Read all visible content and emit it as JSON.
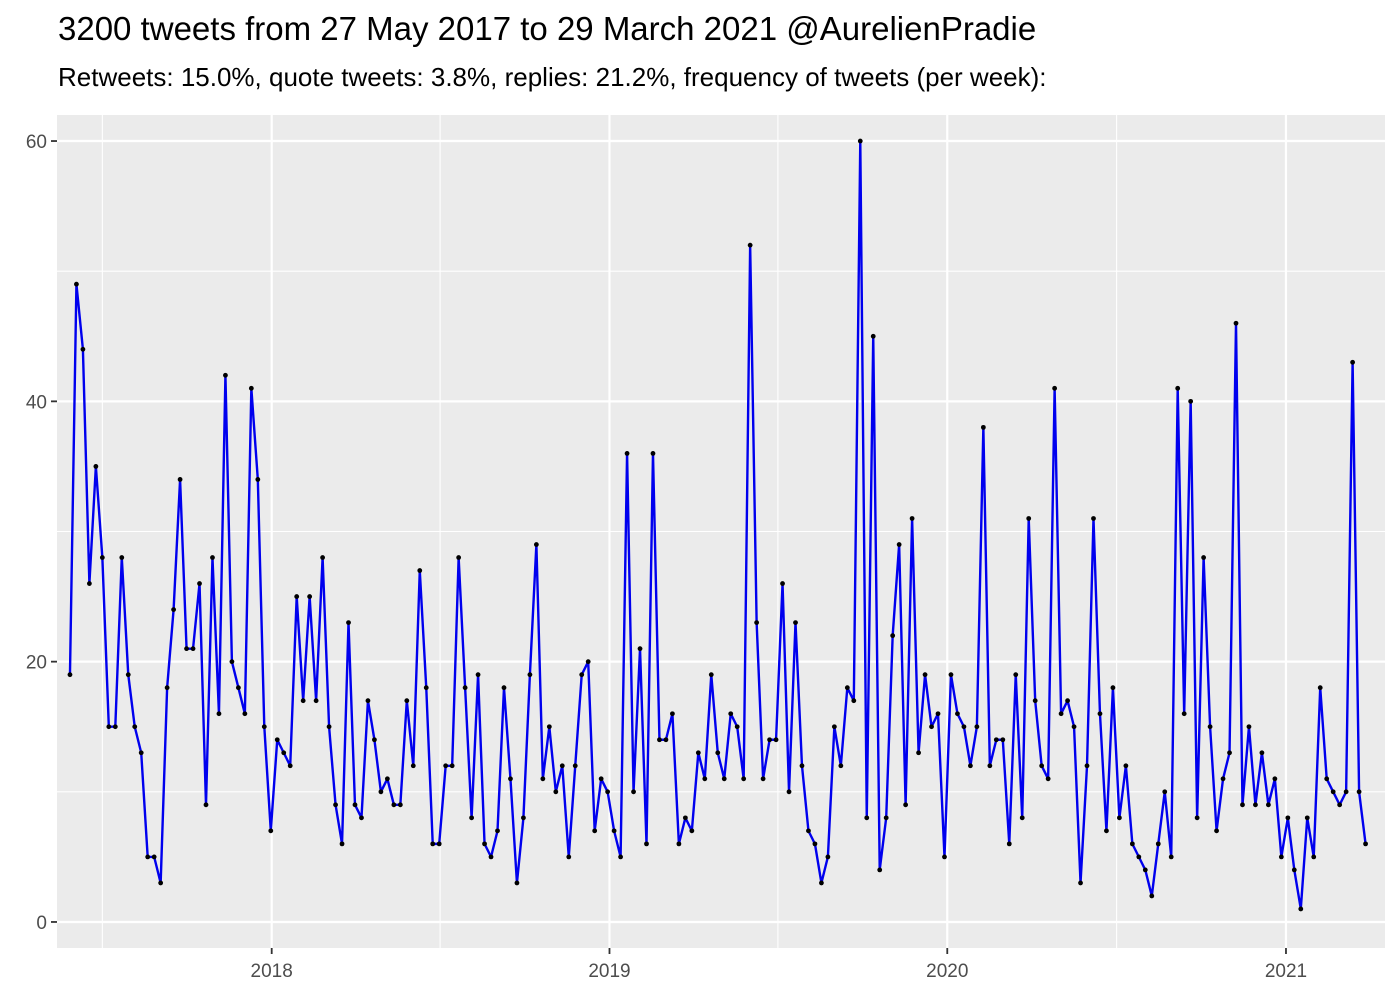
{
  "chart_data": {
    "type": "line",
    "title": "3200 tweets from 27 May 2017 to 29 March 2021 @AurelienPradie",
    "subtitle": "Retweets: 15.0%, quote tweets: 3.8%, replies: 21.2%, frequency of tweets (per week):",
    "xlabel": "",
    "ylabel": "",
    "x_start": "2017-05-28",
    "x_step_days": 7,
    "xlim": [
      "2017-05-14",
      "2021-04-18"
    ],
    "ylim": [
      -2,
      62
    ],
    "x_ticks": [
      {
        "label": "2018",
        "date": "2018-01-01"
      },
      {
        "label": "2019",
        "date": "2019-01-01"
      },
      {
        "label": "2020",
        "date": "2020-01-01"
      },
      {
        "label": "2021",
        "date": "2021-01-01"
      }
    ],
    "x_minor_dates": [
      "2017-07-02",
      "2018-07-02",
      "2019-07-02",
      "2020-07-02"
    ],
    "y_ticks": [
      "0",
      "20",
      "40",
      "60"
    ],
    "y_minor": [
      10,
      30,
      50
    ],
    "grid": true,
    "legend": "none",
    "colors": {
      "line": "#0000ee",
      "points": "#000000",
      "panel": "#ebebeb",
      "grid": "#ffffff"
    },
    "series": [
      {
        "values": [
          19,
          49,
          44,
          26,
          35,
          28,
          15,
          15,
          28,
          19,
          15,
          13,
          5,
          5,
          3,
          18,
          24,
          34,
          21,
          21,
          26,
          9,
          28,
          16,
          42,
          20,
          18,
          16,
          41,
          34,
          15,
          7,
          14,
          13,
          12,
          25,
          17,
          25,
          17,
          28,
          15,
          9,
          6,
          23,
          9,
          8,
          17,
          14,
          10,
          11,
          9,
          9,
          17,
          12,
          27,
          18,
          6,
          6,
          12,
          12,
          28,
          18,
          8,
          19,
          6,
          5,
          7,
          18,
          11,
          3,
          8,
          19,
          29,
          11,
          15,
          10,
          12,
          5,
          12,
          19,
          20,
          7,
          11,
          10,
          7,
          5,
          36,
          10,
          21,
          6,
          36,
          14,
          14,
          16,
          6,
          8,
          7,
          13,
          11,
          19,
          13,
          11,
          16,
          15,
          11,
          52,
          23,
          11,
          14,
          14,
          26,
          10,
          23,
          12,
          7,
          6,
          3,
          5,
          15,
          12,
          18,
          17,
          60,
          8,
          45,
          4,
          8,
          22,
          29,
          9,
          31,
          13,
          19,
          15,
          16,
          5,
          19,
          16,
          15,
          12,
          15,
          38,
          12,
          14,
          14,
          6,
          19,
          8,
          31,
          17,
          12,
          11,
          41,
          16,
          17,
          15,
          3,
          12,
          31,
          16,
          7,
          18,
          8,
          12,
          6,
          5,
          4,
          2,
          6,
          10,
          5,
          41,
          16,
          40,
          8,
          28,
          15,
          7,
          11,
          13,
          46,
          9,
          15,
          9,
          13,
          9,
          11,
          5,
          8,
          4,
          1,
          8,
          5,
          18,
          11,
          10,
          9,
          10,
          43,
          10,
          6
        ]
      }
    ]
  }
}
